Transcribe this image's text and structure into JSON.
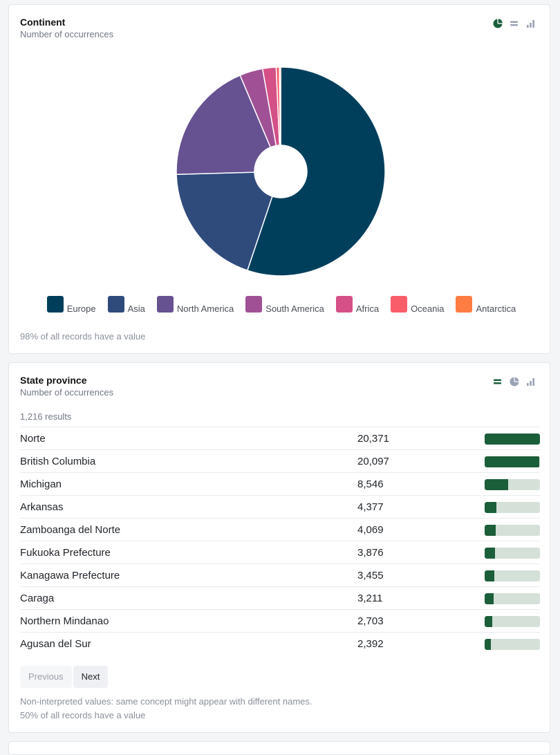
{
  "continent_card": {
    "title": "Continent",
    "subtitle": "Number of occurrences",
    "footnote": "98% of all records have a value",
    "view_icons": [
      "pie-icon",
      "table-icon",
      "bar-chart-icon"
    ],
    "chart_data": {
      "type": "pie",
      "categories": [
        "Europe",
        "Asia",
        "North America",
        "South America",
        "Africa",
        "Oceania",
        "Antarctica"
      ],
      "values": [
        55.5,
        19.5,
        19.2,
        3.6,
        2.1,
        0.5,
        0.2
      ],
      "colors": [
        "#003f5c",
        "#2f4b7c",
        "#665191",
        "#a05195",
        "#d45087",
        "#f95d6a",
        "#ff7c43"
      ],
      "legend": "bottom",
      "donut": true
    }
  },
  "state_card": {
    "title": "State province",
    "subtitle": "Number of occurrences",
    "results_count": "1,216 results",
    "view_icons": [
      "table-icon",
      "pie-icon",
      "bar-chart-icon"
    ],
    "rows": [
      {
        "name": "Norte",
        "count": "20,371",
        "fraction": 1.0
      },
      {
        "name": "British Columbia",
        "count": "20,097",
        "fraction": 0.987
      },
      {
        "name": "Michigan",
        "count": "8,546",
        "fraction": 0.42
      },
      {
        "name": "Arkansas",
        "count": "4,377",
        "fraction": 0.215
      },
      {
        "name": "Zamboanga del Norte",
        "count": "4,069",
        "fraction": 0.2
      },
      {
        "name": "Fukuoka Prefecture",
        "count": "3,876",
        "fraction": 0.19
      },
      {
        "name": "Kanagawa Prefecture",
        "count": "3,455",
        "fraction": 0.17
      },
      {
        "name": "Caraga",
        "count": "3,211",
        "fraction": 0.158
      },
      {
        "name": "Northern Mindanao",
        "count": "2,703",
        "fraction": 0.133
      },
      {
        "name": "Agusan del Sur",
        "count": "2,392",
        "fraction": 0.117
      }
    ],
    "pager": {
      "previous_label": "Previous",
      "next_label": "Next"
    },
    "note": "Non-interpreted values: same concept might appear with different names.",
    "footnote": "50% of all records have a value"
  },
  "colors": {
    "active_icon": "#1b5e3a",
    "inactive_icon": "#9aa3b5",
    "bar_fill": "#1b5e3a",
    "bar_track": "#d4e0d8"
  }
}
